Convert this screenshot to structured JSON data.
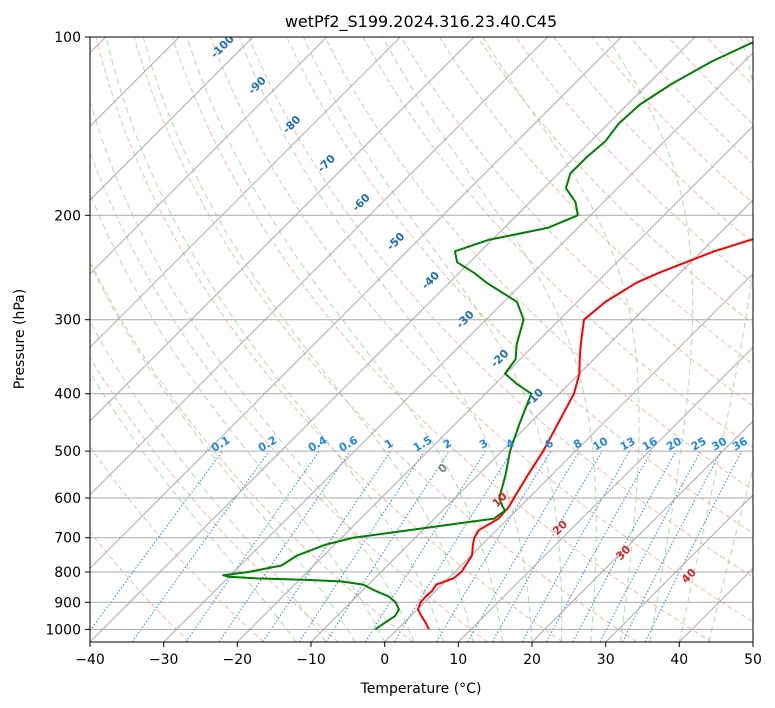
{
  "chart_data": {
    "type": "line",
    "diagram": "skew-t log-p",
    "title": "wetPf2_S199.2024.316.23.40.C45",
    "xlabel": "Temperature (°C)",
    "ylabel": "Pressure (hPa)",
    "xlim": [
      -40,
      50
    ],
    "ylim": [
      1050,
      100
    ],
    "y_scale": "log",
    "x_ticks": [
      -40,
      -30,
      -20,
      -10,
      0,
      10,
      20,
      30,
      40,
      50
    ],
    "x_tick_labels": [
      "−40",
      "−30",
      "−20",
      "−10",
      "0",
      "10",
      "20",
      "30",
      "40",
      "50"
    ],
    "y_ticks": [
      1000,
      900,
      800,
      700,
      600,
      500,
      400,
      300,
      200,
      100
    ],
    "y_tick_labels": [
      "1000",
      "900",
      "800",
      "700",
      "600",
      "500",
      "400",
      "300",
      "200",
      "100"
    ],
    "grid": true,
    "colors": {
      "temperature": "#ff0000",
      "dewpoint": "#008000",
      "isotherm_grid": "#aaaaaa",
      "dry_adiabat": "#f4a582",
      "moist_adiabat": "#9ecf9e",
      "mixing_ratio": "#1f88e5",
      "isotherm_label": "#1f6fb4",
      "wet_bulb_label": "#d62728",
      "zero_label": "#808080"
    },
    "series": [
      {
        "color": "#ff0000",
        "pressure": [
          1000,
          975,
          950,
          925,
          900,
          880,
          860,
          840,
          820,
          800,
          780,
          750,
          720,
          700,
          680,
          650,
          620,
          600,
          550,
          500,
          450,
          400,
          370,
          350,
          330,
          300,
          280,
          260,
          250,
          230,
          210,
          200,
          180,
          160,
          150,
          140,
          130,
          120,
          110,
          100
        ],
        "temperature": [
          4.3,
          3.0,
          1.5,
          0.1,
          -0.5,
          -0.6,
          -0.5,
          -0.8,
          0.7,
          0.9,
          0.6,
          0.1,
          -1.2,
          -2.0,
          -2.4,
          -1.3,
          -1.5,
          -2.0,
          -3.2,
          -4.4,
          -6.1,
          -8.0,
          -10.0,
          -11.9,
          -13.8,
          -16.7,
          -16.2,
          -14.6,
          -12.9,
          -8.3,
          -1.3,
          3.0,
          10.8,
          18.4,
          21.4,
          23.8,
          28.2,
          33.9,
          39.4,
          43.2
        ]
      },
      {
        "color": "#008000",
        "pressure": [
          1000,
          975,
          950,
          925,
          900,
          880,
          860,
          840,
          830,
          825,
          820,
          815,
          810,
          800,
          780,
          750,
          720,
          700,
          680,
          660,
          650,
          630,
          620,
          600,
          550,
          500,
          450,
          400,
          385,
          370,
          350,
          330,
          300,
          280,
          260,
          250,
          240,
          230,
          220,
          210,
          200,
          190,
          180,
          170,
          160,
          150,
          140,
          130,
          120,
          110,
          100
        ],
        "temperature": [
          -3.0,
          -2.6,
          -2.1,
          -2.5,
          -3.9,
          -5.6,
          -8.3,
          -10.7,
          -14.0,
          -19.0,
          -26.0,
          -30.0,
          -31.0,
          -28.0,
          -24.4,
          -23.6,
          -21.3,
          -18.4,
          -11.9,
          -5.3,
          -1.9,
          -1.5,
          -2.4,
          -4.0,
          -6.2,
          -8.9,
          -11.3,
          -13.8,
          -17.1,
          -20.1,
          -20.6,
          -22.5,
          -24.9,
          -28.2,
          -34.9,
          -38.0,
          -41.7,
          -43.5,
          -40.5,
          -34.1,
          -31.7,
          -33.8,
          -37.0,
          -38.4,
          -38.4,
          -38.0,
          -38.6,
          -38.3,
          -36.8,
          -34.4,
          -30.6
        ]
      }
    ],
    "isotherm_labels": [
      "-100",
      "-90",
      "-80",
      "-70",
      "-60",
      "-50",
      "-40",
      "-30",
      "-20",
      "-10"
    ],
    "mixing_ratio_labels": [
      "0.1",
      "0.2",
      "0.4",
      "0.6",
      "1",
      "1.5",
      "2",
      "3",
      "4",
      "6",
      "8",
      "10",
      "13",
      "16",
      "20",
      "25",
      "30",
      "36"
    ],
    "wet_bulb_labels": [
      "0",
      "10",
      "20",
      "30",
      "40"
    ]
  }
}
